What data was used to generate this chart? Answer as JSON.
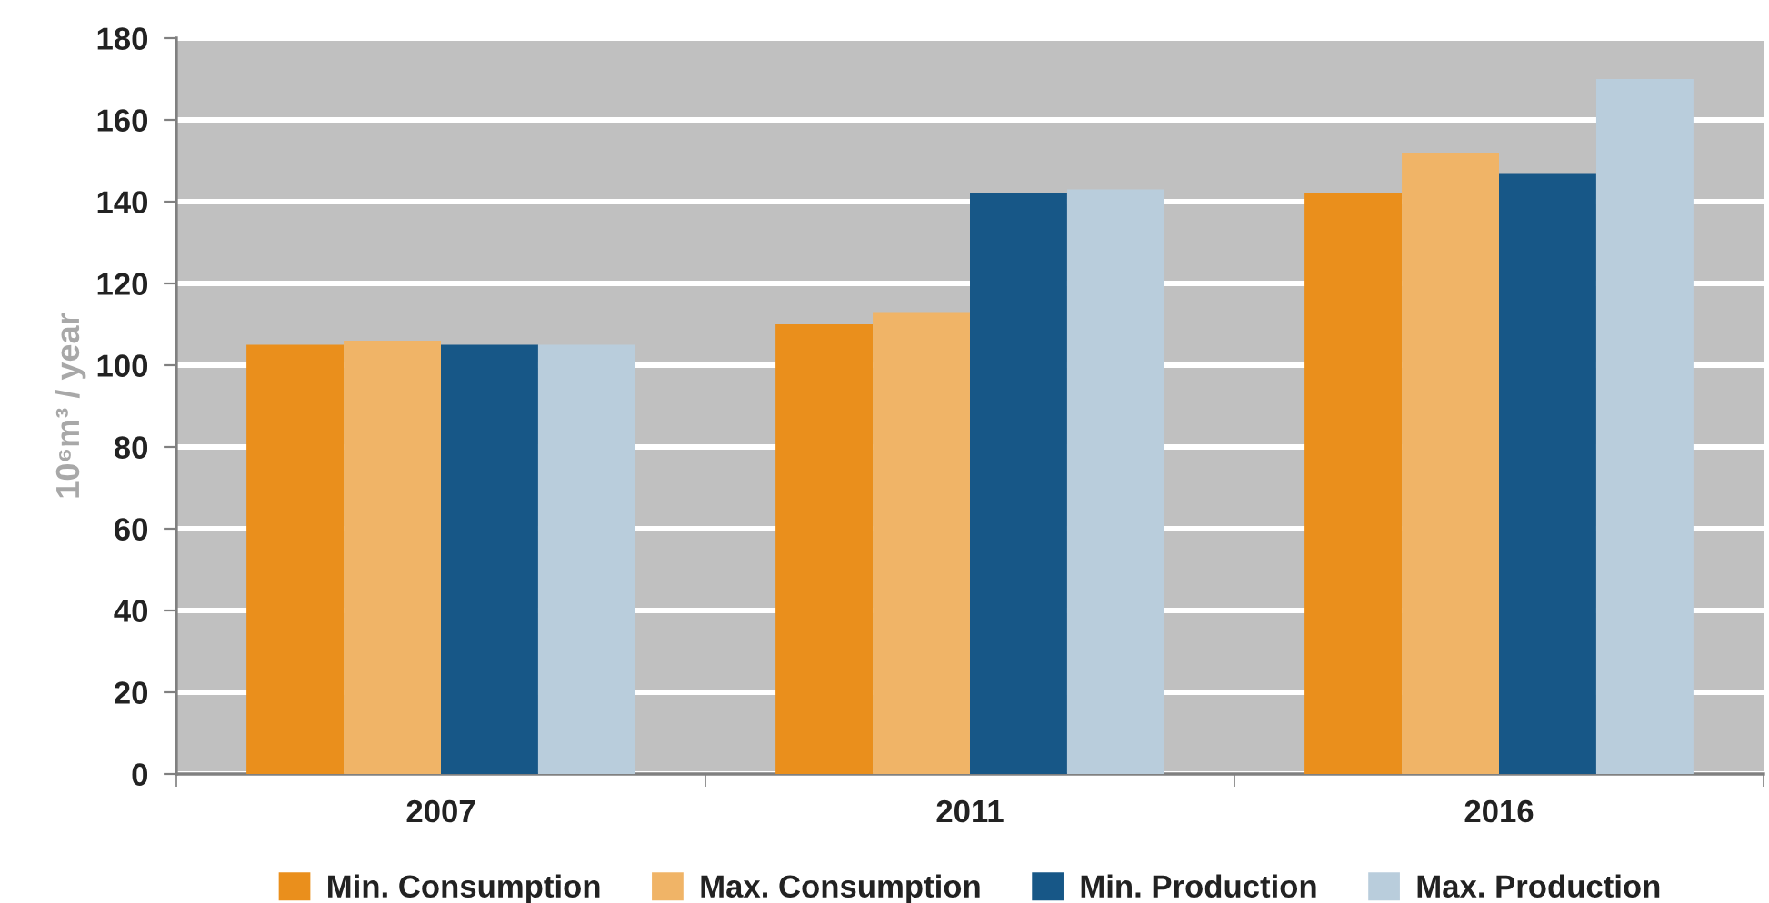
{
  "chart_data": {
    "type": "bar",
    "ylabel": "10⁶m³ / year",
    "categories": [
      "2007",
      "2011",
      "2016"
    ],
    "series": [
      {
        "name": "Min. Consumption",
        "color": "#ea8f1c",
        "values": [
          105,
          110,
          142
        ]
      },
      {
        "name": "Max. Consumption",
        "color": "#f0b467",
        "values": [
          106,
          113,
          152
        ]
      },
      {
        "name": "Min. Production",
        "color": "#175787",
        "values": [
          105,
          142,
          147
        ]
      },
      {
        "name": "Max. Production",
        "color": "#b9cddc",
        "values": [
          105,
          143,
          170
        ]
      }
    ],
    "ylim": [
      0,
      180
    ],
    "yticks": [
      0,
      20,
      40,
      60,
      80,
      100,
      120,
      140,
      160,
      180
    ],
    "grid": "y",
    "legend": "bottom"
  }
}
